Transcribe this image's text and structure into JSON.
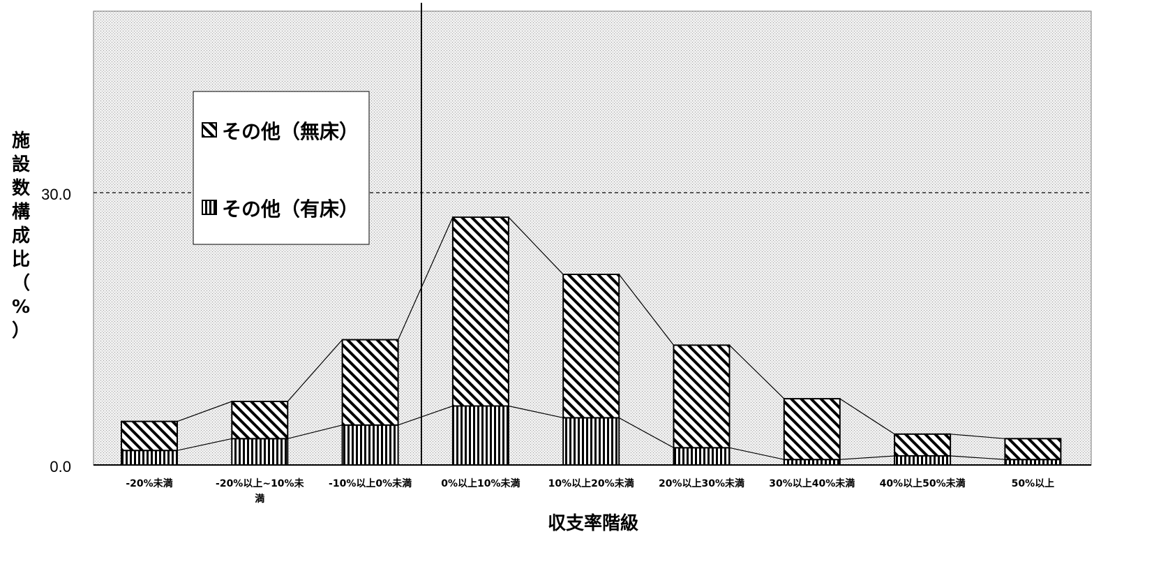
{
  "chart_data": {
    "type": "bar",
    "stacked": true,
    "xlabel": "収支率階級",
    "ylabel": "施設数構成比（%）",
    "ylim": [
      0,
      50
    ],
    "yticks": [
      "0.0",
      "30.0"
    ],
    "reference_line": 30.0,
    "grid": false,
    "legend_position": "top-left",
    "categories": [
      "-20%未満",
      "-20%以上~10%未満",
      "-10%以上0%未満",
      "0%以上10%未満",
      "10%以上20%未満",
      "20%以上30%未満",
      "30%以上40%未満",
      "40%以上50%未満",
      "50%以上"
    ],
    "category_lines": [
      [
        "-20%未満"
      ],
      [
        "-20%以上~10%未",
        "満"
      ],
      [
        "-10%以上0%未満"
      ],
      [
        "0%以上10%未満"
      ],
      [
        "10%以上20%未満"
      ],
      [
        "20%以上30%未満"
      ],
      [
        "30%以上40%未満"
      ],
      [
        "40%以上50%未満"
      ],
      [
        "50%以上"
      ]
    ],
    "series": [
      {
        "name": "その他（有床）",
        "values": [
          1.6,
          2.9,
          4.4,
          6.5,
          5.2,
          1.9,
          0.6,
          1.0,
          0.6
        ]
      },
      {
        "name": "その他（無床）",
        "values": [
          3.2,
          4.1,
          9.4,
          20.8,
          15.8,
          11.3,
          6.7,
          2.4,
          2.3
        ]
      }
    ],
    "totals": [
      4.8,
      7.0,
      13.8,
      27.3,
      21.0,
      13.2,
      7.3,
      3.4,
      2.9
    ],
    "legend": [
      "その他（無床）",
      "その他（有床）"
    ],
    "colors": {
      "plot_bg": "#ebebeb",
      "bar_fill": "#ffffff",
      "hatch": "#000000",
      "line": "#000000"
    }
  }
}
